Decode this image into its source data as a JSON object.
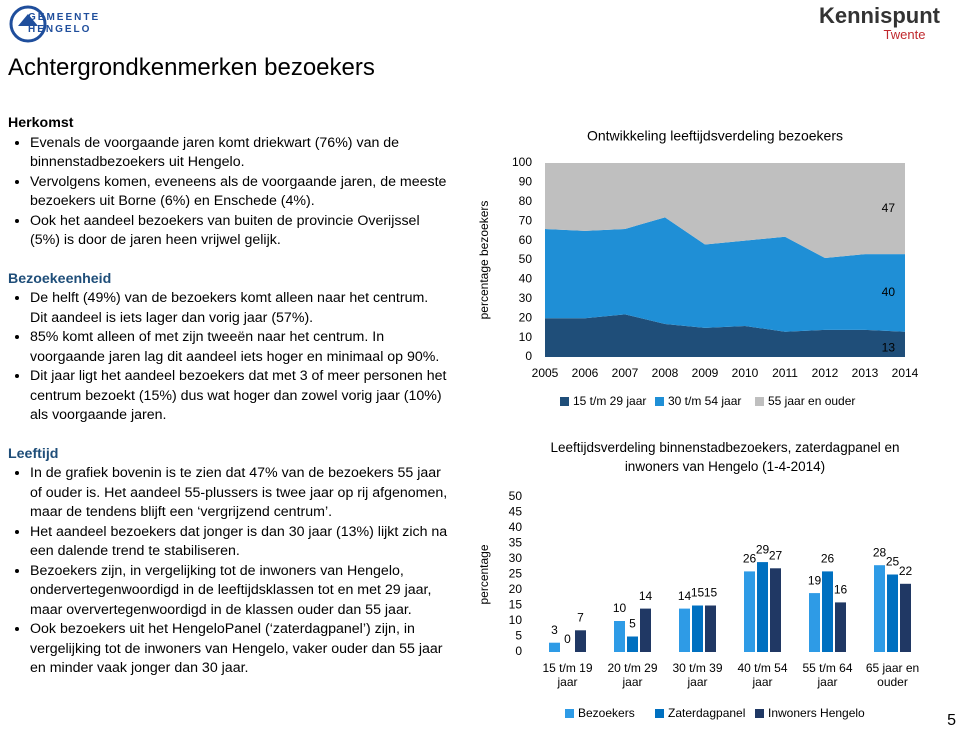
{
  "header": {
    "logo_left": "GEMEENTE HENGELO",
    "logo_right": "Kennispunt",
    "logo_right_sub": "Twente"
  },
  "title": "Achtergrondkenmerken bezoekers",
  "sections": [
    {
      "heading": "Herkomst",
      "bullets": [
        "Evenals de voorgaande jaren komt driekwart (76%) van de binnenstadbezoekers uit Hengelo.",
        "Vervolgens komen, eveneens als de voorgaande jaren, de meeste bezoekers uit Borne (6%) en Enschede (4%).",
        "Ook het aandeel bezoekers van buiten de provincie Overijssel (5%) is door de jaren heen vrijwel gelijk."
      ]
    },
    {
      "heading": "Bezoekeenheid",
      "bullets": [
        "De helft (49%) van de bezoekers komt alleen naar het centrum. Dit aandeel is iets lager dan vorig jaar (57%).",
        "85% komt alleen of met zijn tweeën naar het centrum. In voorgaande jaren lag dit aandeel iets hoger en minimaal op 90%.",
        "Dit jaar ligt het aandeel bezoekers dat met 3 of meer personen het centrum bezoekt (15%) dus wat hoger dan zowel vorig jaar (10%) als voorgaande jaren."
      ]
    },
    {
      "heading": "Leeftijd",
      "bullets": [
        "In de grafiek bovenin is te zien dat 47% van de bezoekers 55 jaar of ouder is. Het aandeel 55-plussers is twee jaar op rij afgenomen, maar de tendens blijft een ‘vergrijzend centrum’.",
        "Het aandeel bezoekers dat jonger is dan 30 jaar (13%) lijkt zich na een dalende trend te stabiliseren.",
        "Bezoekers zijn, in vergelijking tot de inwoners van Hengelo, ondervertegenwoordigd in de leeftijdsklassen tot en met 29 jaar, maar oververtegenwoordigd in de klassen ouder dan 55 jaar.",
        "Ook bezoekers uit het HengeloPanel (‘zaterdagpanel’) zijn, in vergelijking tot de inwoners van Hengelo, vaker ouder dan 55 jaar en minder vaak jonger dan 30 jaar."
      ]
    }
  ],
  "page_number": 5,
  "chart_data": [
    {
      "type": "area",
      "stacked": true,
      "title": "Ontwikkeling leeftijdsverdeling bezoekers",
      "y_label": "percentage bezoekers",
      "x": [
        2005,
        2006,
        2007,
        2008,
        2009,
        2010,
        2011,
        2012,
        2013,
        2014
      ],
      "xlim": [
        2005,
        2014
      ],
      "xticks": [
        2005,
        2006,
        2007,
        2008,
        2009,
        2010,
        2011,
        2012,
        2013,
        2014
      ],
      "ylim": [
        0,
        100
      ],
      "yticks": [
        0,
        10,
        20,
        30,
        40,
        50,
        60,
        70,
        80,
        90,
        100
      ],
      "grid": false,
      "legend": "bottom",
      "series": [
        {
          "name": "15 t/m 29 jaar",
          "color": "#1f4e79",
          "values": [
            20,
            20,
            22,
            17,
            15,
            16,
            13,
            14,
            14,
            13
          ]
        },
        {
          "name": "30 t/m 54 jaar",
          "color": "#1f8fd6",
          "values": [
            46,
            45,
            44,
            55,
            43,
            44,
            49,
            37,
            39,
            40
          ]
        },
        {
          "name": "55 jaar en ouder",
          "color": "#bfbfbf",
          "values": [
            34,
            35,
            34,
            28,
            42,
            40,
            38,
            49,
            47,
            47
          ]
        }
      ]
    },
    {
      "type": "bar",
      "title": "Leeftijdsverdeling binnenstadbezoekers, zaterdagpanel en inwoners van Hengelo (1-4-2014)",
      "y_label": "percentage",
      "categories": [
        "15 t/m 19 jaar",
        "20 t/m 29 jaar",
        "30 t/m 39 jaar",
        "40 t/m 54 jaar",
        "55 t/m 64 jaar",
        "65 jaar en ouder"
      ],
      "ylim": [
        0,
        50
      ],
      "yticks": [
        0,
        5,
        10,
        15,
        20,
        25,
        30,
        35,
        40,
        45,
        50
      ],
      "grid": false,
      "legend": "bottom",
      "series": [
        {
          "name": "Bezoekers",
          "color": "#2e9be6",
          "values": [
            3,
            10,
            14,
            26,
            19,
            28
          ]
        },
        {
          "name": "Zaterdagpanel",
          "color": "#0070c0",
          "values": [
            0,
            5,
            15,
            29,
            26,
            25
          ]
        },
        {
          "name": "Inwoners Hengelo",
          "color": "#203864",
          "values": [
            7,
            14,
            15,
            27,
            16,
            22
          ]
        }
      ]
    }
  ]
}
